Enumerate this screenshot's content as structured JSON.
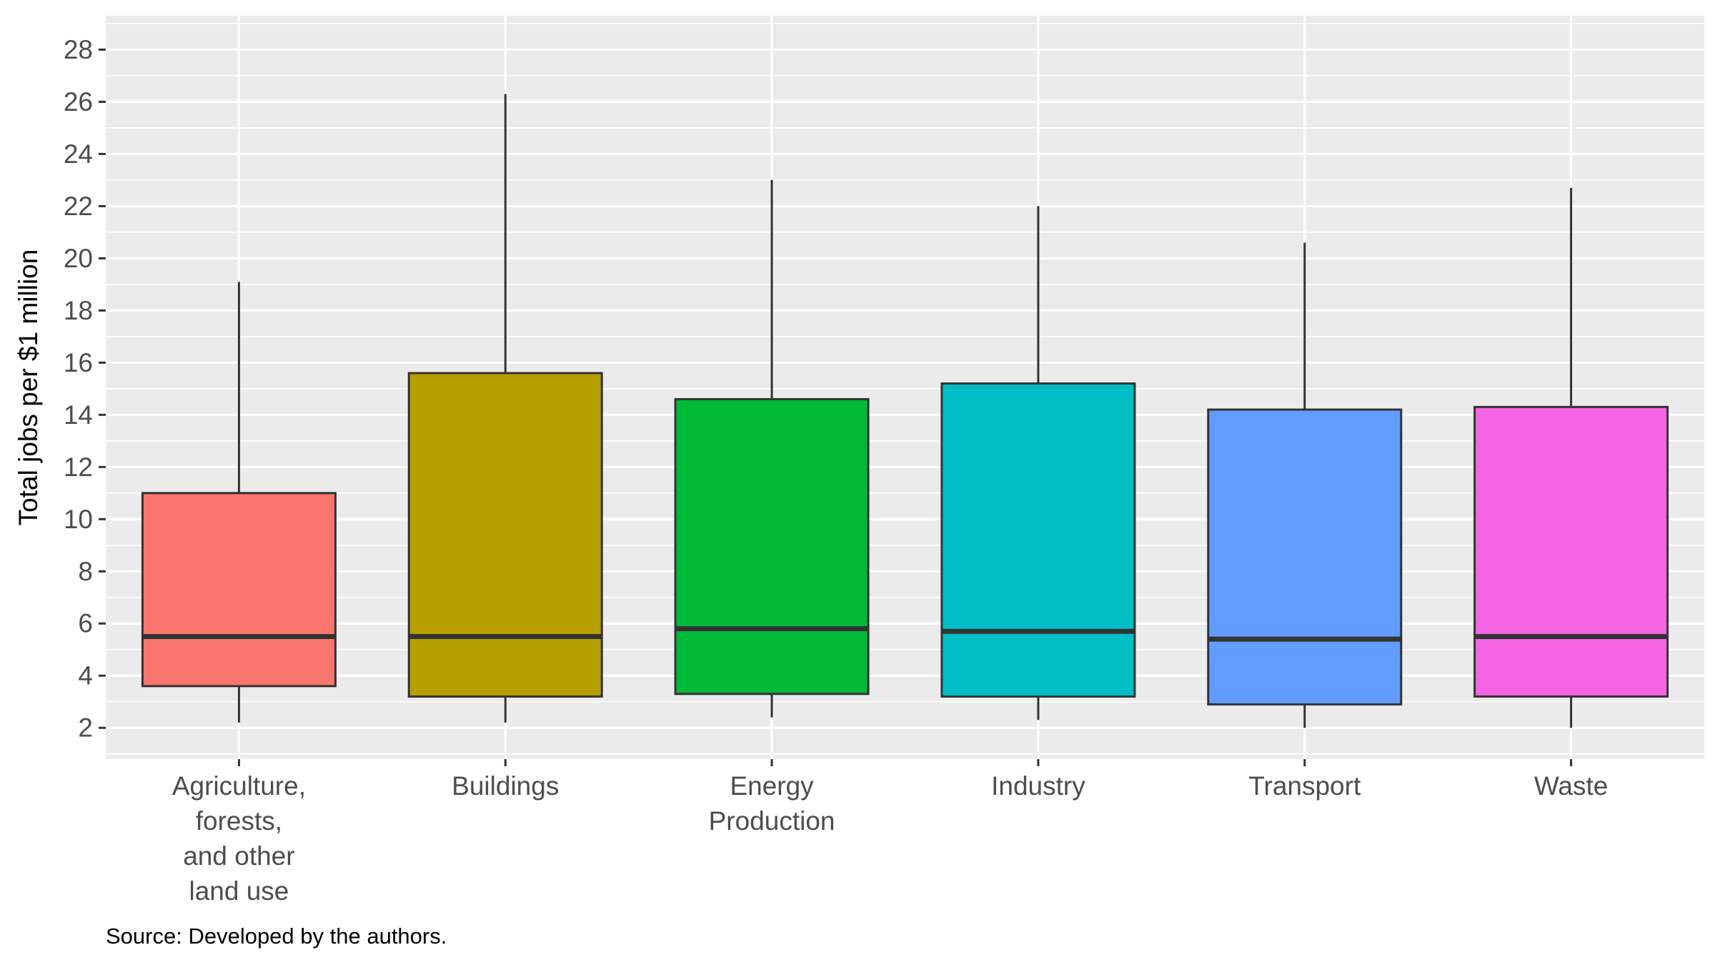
{
  "chart_data": {
    "type": "box",
    "ylabel": "Total jobs per $1 million",
    "xlabel": "",
    "ylim": [
      0.8,
      29.3
    ],
    "yticks": [
      2,
      4,
      6,
      8,
      10,
      12,
      14,
      16,
      18,
      20,
      22,
      24,
      26,
      28
    ],
    "grid": true,
    "legend": "none",
    "categories": [
      [
        "Agriculture,",
        "forests,",
        "and other",
        "land use"
      ],
      [
        "Buildings"
      ],
      [
        "Energy",
        "Production"
      ],
      [
        "Industry"
      ],
      [
        "Transport"
      ],
      [
        "Waste"
      ]
    ],
    "boxes": [
      {
        "min": 2.2,
        "q1": 3.6,
        "median": 5.5,
        "q3": 11.0,
        "max": 19.1,
        "color": "#F8766D"
      },
      {
        "min": 2.2,
        "q1": 3.2,
        "median": 5.5,
        "q3": 15.6,
        "max": 26.3,
        "color": "#B79F00"
      },
      {
        "min": 2.4,
        "q1": 3.3,
        "median": 5.8,
        "q3": 14.6,
        "max": 23.0,
        "color": "#00BA38"
      },
      {
        "min": 2.3,
        "q1": 3.2,
        "median": 5.7,
        "q3": 15.2,
        "max": 22.0,
        "color": "#00BFC4"
      },
      {
        "min": 2.0,
        "q1": 2.9,
        "median": 5.4,
        "q3": 14.2,
        "max": 20.6,
        "color": "#619CFF"
      },
      {
        "min": 2.0,
        "q1": 3.2,
        "median": 5.5,
        "q3": 14.3,
        "max": 22.7,
        "color": "#F564E3"
      }
    ],
    "source": "Source: Developed by the authors."
  },
  "colors": {
    "panel_background": "#EBEBEB",
    "grid_major": "#FFFFFF",
    "box_outline": "#333333",
    "tick_text": "#4D4D4D"
  }
}
